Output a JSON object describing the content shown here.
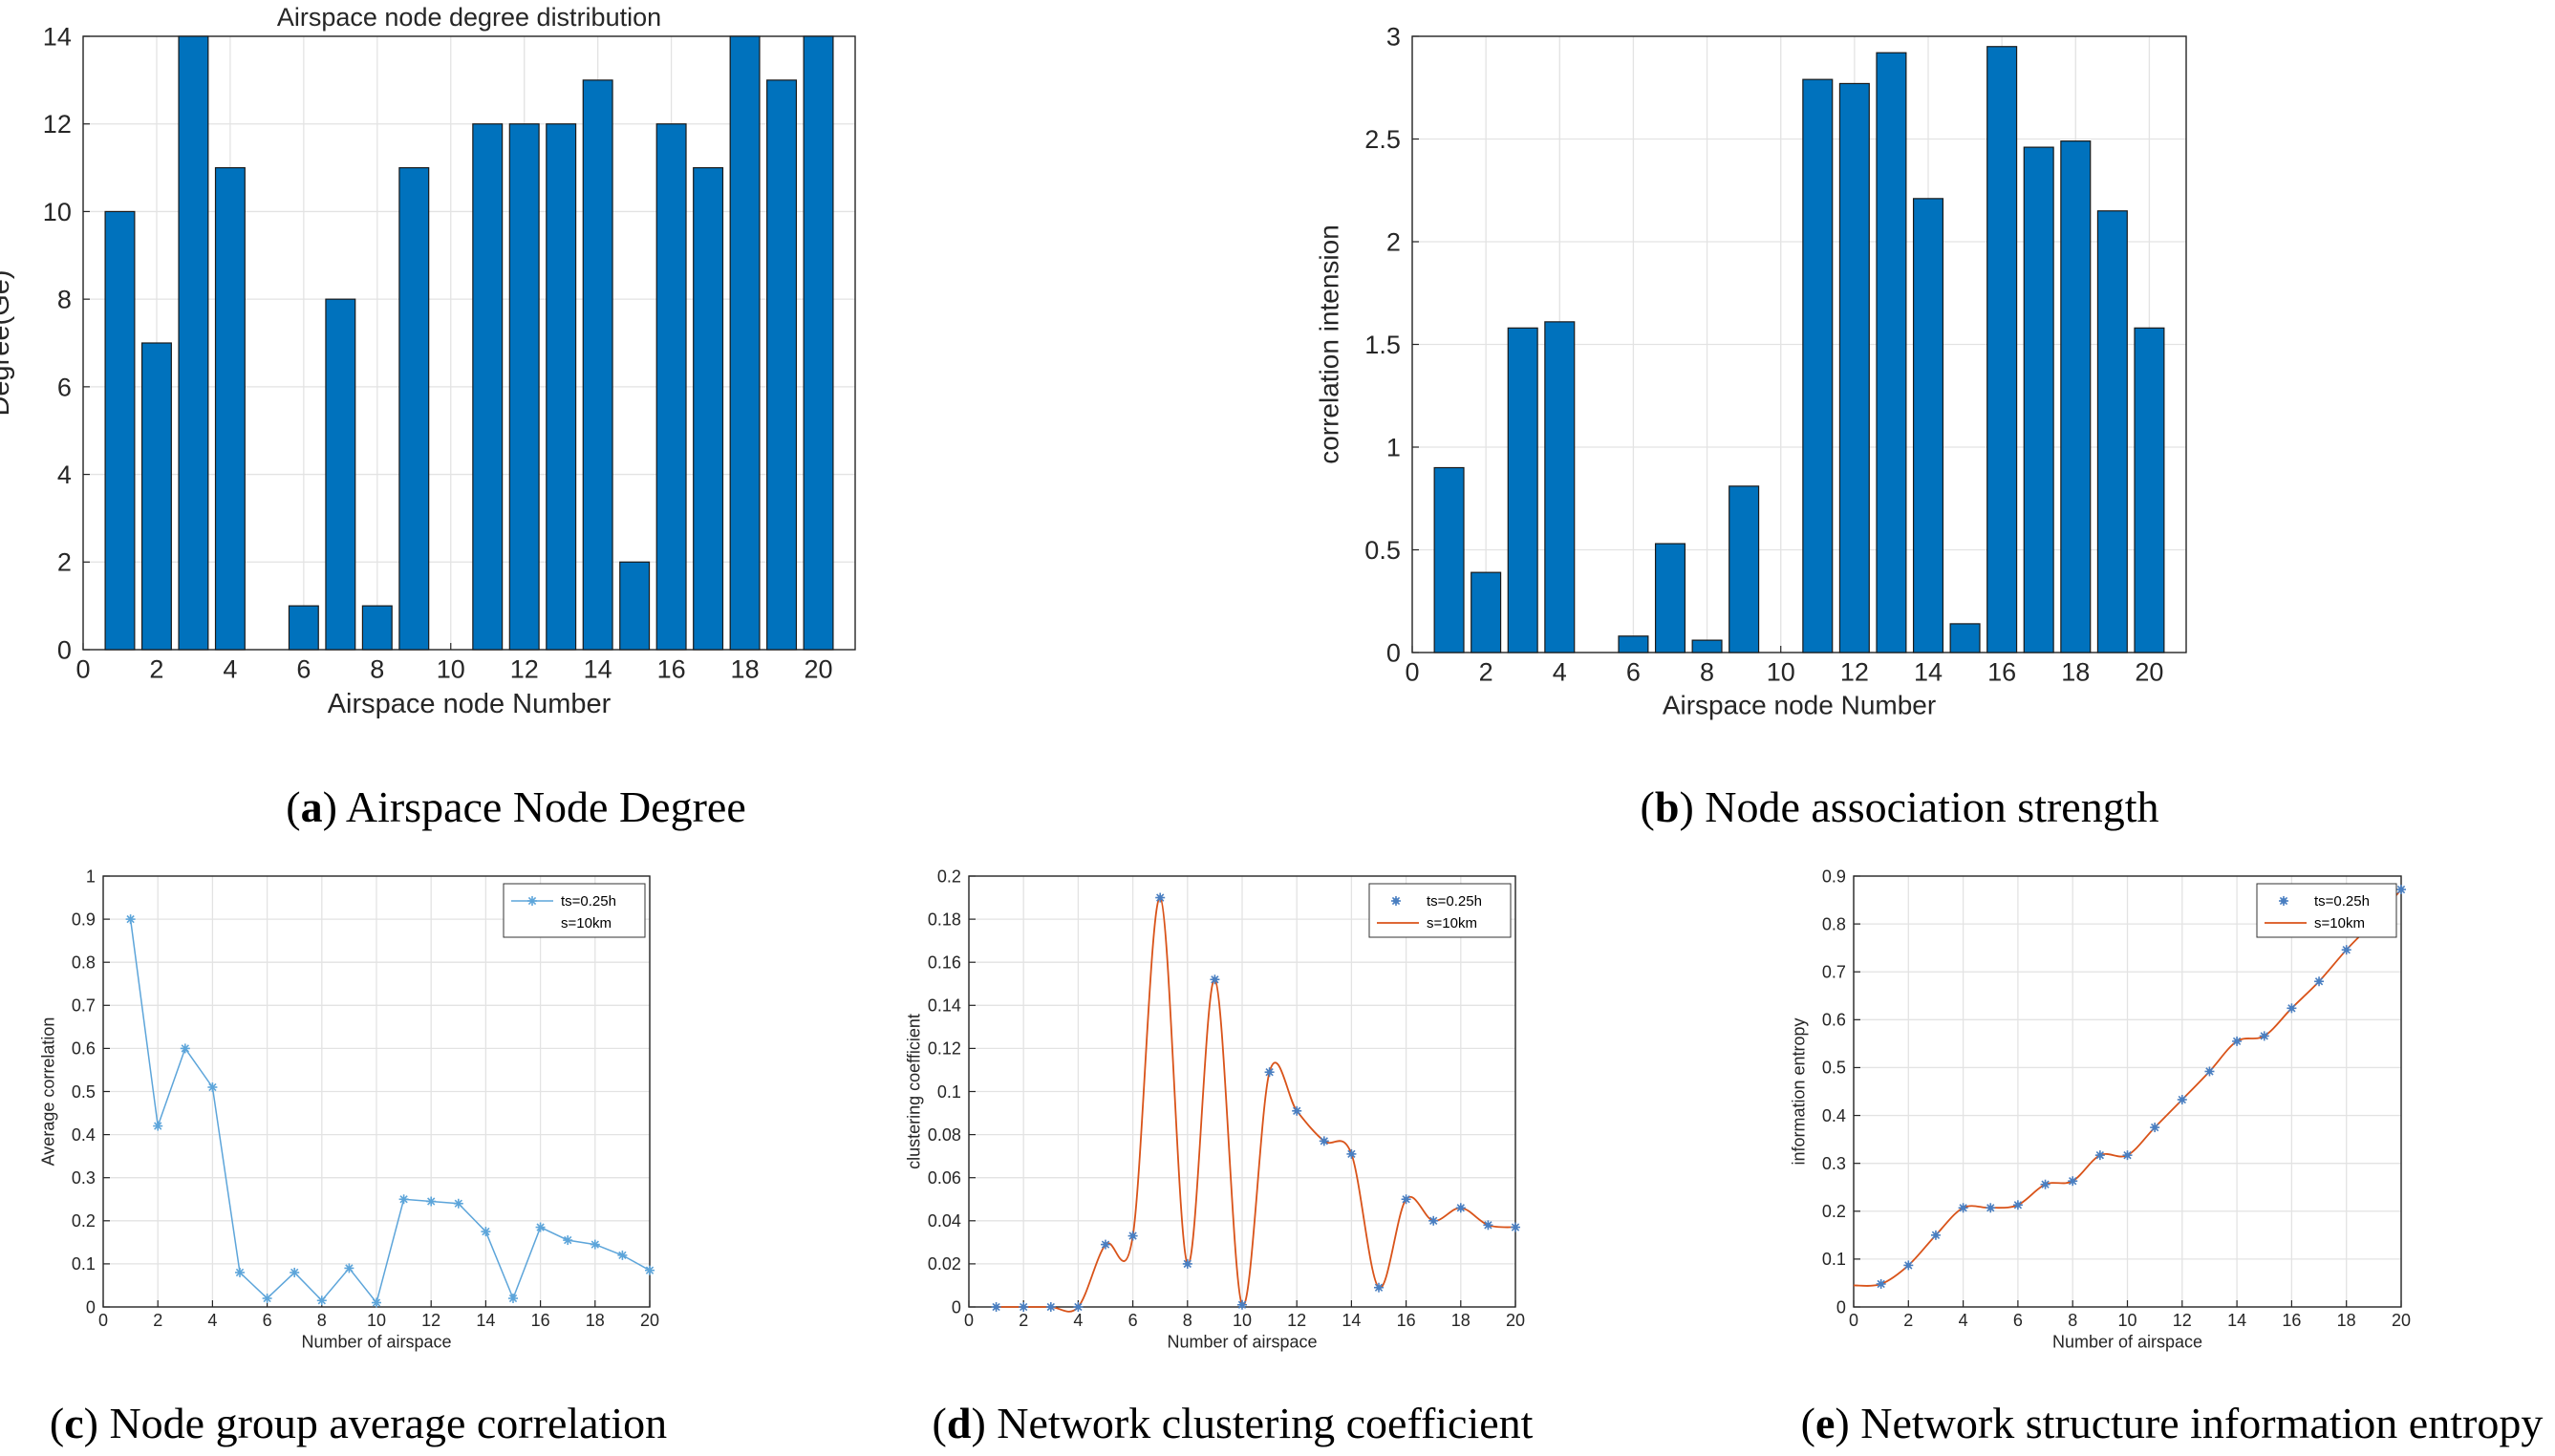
{
  "colors": {
    "bar": "#0072BD",
    "bar_edge": "#1a1a1a",
    "marker": "#4A7FC1",
    "line_c": "#5DA5DA",
    "curve": "#D95319",
    "grid": "#e3e3e3",
    "axis": "#262626"
  },
  "charts": {
    "a": {
      "type": "bar",
      "title": "Airspace node degree distribution",
      "xlabel": "Airspace node Number",
      "ylabel": "Degree(Ge)",
      "caption_letter": "a",
      "caption_text": " Airspace Node Degree",
      "xlim": [
        0,
        21
      ],
      "ylim": [
        0,
        14
      ],
      "xticks": [
        0,
        2,
        4,
        6,
        8,
        10,
        12,
        14,
        16,
        18,
        20
      ],
      "yticks": [
        0,
        2,
        4,
        6,
        8,
        10,
        12,
        14
      ],
      "x": [
        1,
        2,
        3,
        4,
        5,
        6,
        7,
        8,
        9,
        10,
        11,
        12,
        13,
        14,
        15,
        16,
        17,
        18,
        19,
        20
      ],
      "values": [
        10,
        7,
        14,
        11,
        0,
        1,
        8,
        1,
        11,
        0,
        12,
        12,
        12,
        13,
        2,
        12,
        11,
        14,
        13,
        14
      ]
    },
    "b": {
      "type": "bar",
      "title": "",
      "xlabel": "Airspace node Number",
      "ylabel": "correlation intension",
      "caption_letter": "b",
      "caption_text": " Node association strength",
      "xlim": [
        0,
        21
      ],
      "ylim": [
        0,
        3
      ],
      "xticks": [
        0,
        2,
        4,
        6,
        8,
        10,
        12,
        14,
        16,
        18,
        20
      ],
      "yticks": [
        0,
        0.5,
        1,
        1.5,
        2,
        2.5,
        3
      ],
      "x": [
        1,
        2,
        3,
        4,
        5,
        6,
        7,
        8,
        9,
        10,
        11,
        12,
        13,
        14,
        15,
        16,
        17,
        18,
        19,
        20
      ],
      "values": [
        0.9,
        0.39,
        1.58,
        1.61,
        0,
        0.08,
        0.53,
        0.06,
        0.81,
        0,
        2.79,
        2.77,
        2.92,
        2.21,
        0.14,
        2.95,
        2.46,
        2.49,
        2.15,
        1.58
      ]
    },
    "c": {
      "type": "line",
      "xlabel": "Number of airspace",
      "ylabel": "Average correlation",
      "caption_letter": "c",
      "caption_text": " Node group average correlation",
      "xlim": [
        0,
        20
      ],
      "ylim": [
        0,
        1
      ],
      "xticks": [
        0,
        2,
        4,
        6,
        8,
        10,
        12,
        14,
        16,
        18,
        20
      ],
      "yticks": [
        0,
        0.1,
        0.2,
        0.3,
        0.4,
        0.5,
        0.6,
        0.7,
        0.8,
        0.9,
        1
      ],
      "legend": [
        "ts=0.25h",
        "s=10km"
      ],
      "x": [
        1,
        2,
        3,
        4,
        5,
        6,
        7,
        8,
        9,
        10,
        11,
        12,
        13,
        14,
        15,
        16,
        17,
        18,
        19,
        20
      ],
      "values": [
        0.9,
        0.42,
        0.6,
        0.51,
        0.08,
        0.02,
        0.08,
        0.015,
        0.09,
        0.01,
        0.25,
        0.245,
        0.24,
        0.175,
        0.02,
        0.185,
        0.155,
        0.145,
        0.12,
        0.085
      ]
    },
    "d": {
      "type": "scatter+line",
      "xlabel": "Number of airspace",
      "ylabel": "clustering coefficient",
      "caption_letter": "d",
      "caption_text": " Network clustering coefficient",
      "xlim": [
        0,
        20
      ],
      "ylim": [
        0,
        0.2
      ],
      "xticks": [
        0,
        2,
        4,
        6,
        8,
        10,
        12,
        14,
        16,
        18,
        20
      ],
      "yticks": [
        0,
        0.02,
        0.04,
        0.06,
        0.08,
        0.1,
        0.12,
        0.14,
        0.16,
        0.18,
        0.2
      ],
      "legend": [
        "ts=0.25h",
        "s=10km"
      ],
      "x": [
        1,
        2,
        3,
        4,
        5,
        6,
        7,
        8,
        9,
        10,
        11,
        12,
        13,
        14,
        15,
        16,
        17,
        18,
        19,
        20
      ],
      "values": [
        0,
        0,
        0,
        0,
        0.029,
        0.033,
        0.19,
        0.02,
        0.152,
        0.001,
        0.109,
        0.091,
        0.077,
        0.071,
        0.009,
        0.05,
        0.04,
        0.046,
        0.038,
        0.037
      ]
    },
    "e": {
      "type": "scatter+line",
      "xlabel": "Number of airspace",
      "ylabel": "information entropy",
      "caption_letter": "e",
      "caption_text": " Network structure information entropy",
      "xlim": [
        0,
        20
      ],
      "ylim": [
        0,
        0.9
      ],
      "xticks": [
        0,
        2,
        4,
        6,
        8,
        10,
        12,
        14,
        16,
        18,
        20
      ],
      "yticks": [
        0,
        0.1,
        0.2,
        0.3,
        0.4,
        0.5,
        0.6,
        0.7,
        0.8,
        0.9
      ],
      "legend": [
        "ts=0.25h",
        "s=10km"
      ],
      "x": [
        1,
        2,
        3,
        4,
        5,
        6,
        7,
        8,
        9,
        10,
        11,
        12,
        13,
        14,
        15,
        16,
        17,
        18,
        19,
        20
      ],
      "values": [
        0.048,
        0.087,
        0.15,
        0.207,
        0.207,
        0.213,
        0.256,
        0.263,
        0.317,
        0.317,
        0.375,
        0.433,
        0.492,
        0.555,
        0.566,
        0.624,
        0.68,
        0.746,
        0.805,
        0.872
      ],
      "curve_start": [
        0,
        0.045
      ]
    }
  }
}
